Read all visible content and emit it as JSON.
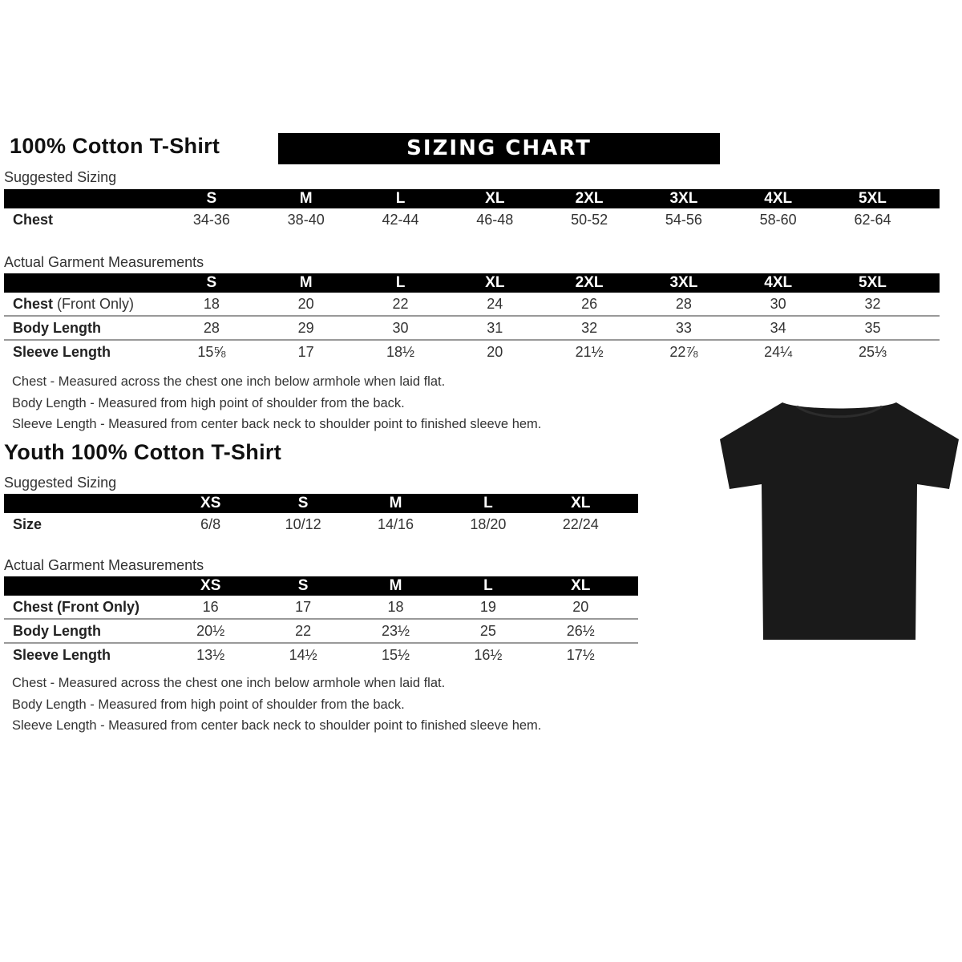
{
  "adult": {
    "title": "100% Cotton T-Shirt",
    "banner": "SIZING CHART",
    "suggested_label": "Suggested Sizing",
    "sizes": [
      "S",
      "M",
      "L",
      "XL",
      "2XL",
      "3XL",
      "4XL",
      "5XL"
    ],
    "suggested_rows": [
      {
        "label": "Chest",
        "values": [
          "34-36",
          "38-40",
          "42-44",
          "46-48",
          "50-52",
          "54-56",
          "58-60",
          "62-64"
        ]
      }
    ],
    "actual_label": "Actual Garment Measurements",
    "actual_rows": [
      {
        "label": "Chest",
        "label_extra": " (Front Only)",
        "values": [
          "18",
          "20",
          "22",
          "24",
          "26",
          "28",
          "30",
          "32"
        ]
      },
      {
        "label": "Body Length",
        "values": [
          "28",
          "29",
          "30",
          "31",
          "32",
          "33",
          "34",
          "35"
        ]
      },
      {
        "label": "Sleeve Length",
        "values": [
          "15⅝",
          "17",
          "18½",
          "20",
          "21½",
          "22⅞",
          "24¼",
          "25⅓"
        ]
      }
    ],
    "notes": [
      "Chest - Measured across the chest one inch below armhole when laid flat.",
      "Body Length - Measured from high point of shoulder from the back.",
      "Sleeve Length - Measured from center back neck to shoulder point to finished sleeve hem."
    ]
  },
  "youth": {
    "title": "Youth 100% Cotton T-Shirt",
    "suggested_label": "Suggested Sizing",
    "sizes": [
      "XS",
      "S",
      "M",
      "L",
      "XL"
    ],
    "suggested_rows": [
      {
        "label": "Size",
        "values": [
          "6/8",
          "10/12",
          "14/16",
          "18/20",
          "22/24"
        ]
      }
    ],
    "actual_label": "Actual Garment Measurements",
    "actual_rows": [
      {
        "label": "Chest (Front Only)",
        "values": [
          "16",
          "17",
          "18",
          "19",
          "20"
        ]
      },
      {
        "label": "Body Length",
        "values": [
          "20½",
          "22",
          "23½",
          "25",
          "26½"
        ]
      },
      {
        "label": "Sleeve Length",
        "values": [
          "13½",
          "14½",
          "15½",
          "16½",
          "17½"
        ]
      }
    ],
    "notes": [
      "Chest - Measured across the chest one inch below armhole when laid flat.",
      "Body Length - Measured from high point of shoulder from the back.",
      "Sleeve Length - Measured from center back neck to shoulder point to finished sleeve hem."
    ]
  },
  "image": {
    "icon": "black-tshirt-icon",
    "color": "#1a1a1a"
  }
}
